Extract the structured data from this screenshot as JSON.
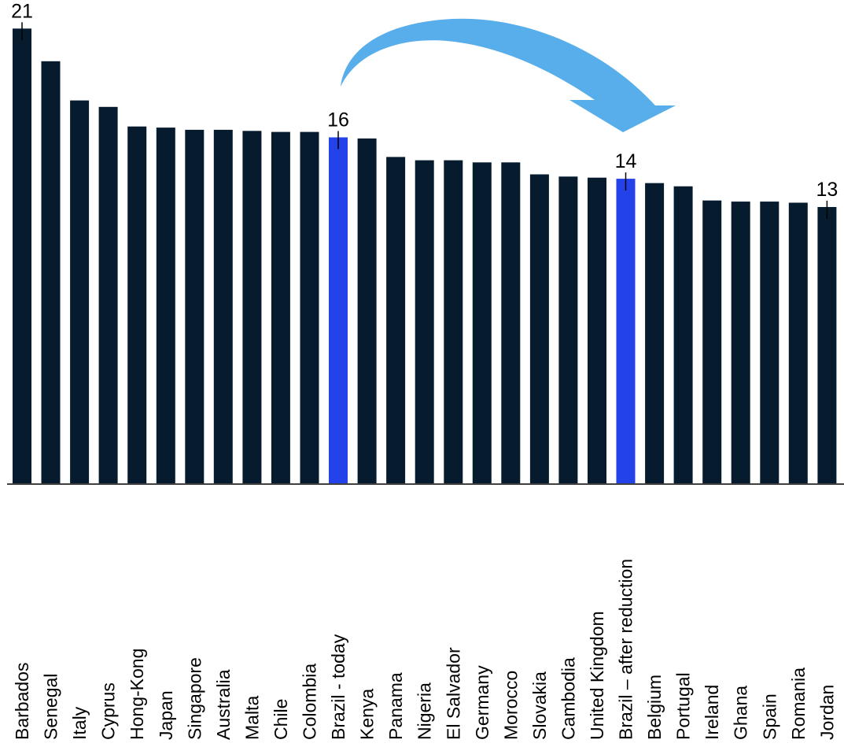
{
  "chart_data": {
    "type": "bar",
    "title": "",
    "xlabel": "",
    "ylabel": "",
    "ylim": [
      0,
      21.6
    ],
    "grid": false,
    "legend": "none",
    "categories": [
      "Barbados",
      "Senegal",
      "Italy",
      "Cyprus",
      "Hong-Kong",
      "Japan",
      "Singapore",
      "Australia",
      "Malta",
      "Chile",
      "Colombia",
      "Brazil - today",
      "Kenya",
      "Panama",
      "Nigeria",
      "El Salvador",
      "Germany",
      "Morocco",
      "Slovakia",
      "Cambodia",
      "United Kingdom",
      "Brazil – after reduction",
      "Belgium",
      "Portugal",
      "Ireland",
      "Ghana",
      "Spain",
      "Romania",
      "Jordan"
    ],
    "values": [
      20.9,
      19.4,
      17.6,
      17.3,
      16.4,
      16.35,
      16.25,
      16.25,
      16.2,
      16.15,
      16.15,
      15.9,
      15.85,
      15.0,
      14.85,
      14.85,
      14.75,
      14.75,
      14.2,
      14.1,
      14.05,
      14.0,
      13.8,
      13.65,
      13.0,
      12.95,
      12.95,
      12.9,
      12.7
    ],
    "highlighted": [
      "Brazil - today",
      "Brazil – after reduction"
    ],
    "data_labels": [
      {
        "category": "Barbados",
        "text": "21"
      },
      {
        "category": "Brazil - today",
        "text": "16"
      },
      {
        "category": "Brazil – after reduction",
        "text": "14"
      },
      {
        "category": "Jordan",
        "text": "13"
      }
    ],
    "colors": {
      "bar": "#061c2e",
      "highlight": "#2342ea",
      "arrow": "#58aeea",
      "axis": "#000000",
      "text": "#000000"
    },
    "annotations": [
      {
        "type": "arrow",
        "from": "Brazil - today",
        "to": "Brazil – after reduction"
      }
    ]
  }
}
